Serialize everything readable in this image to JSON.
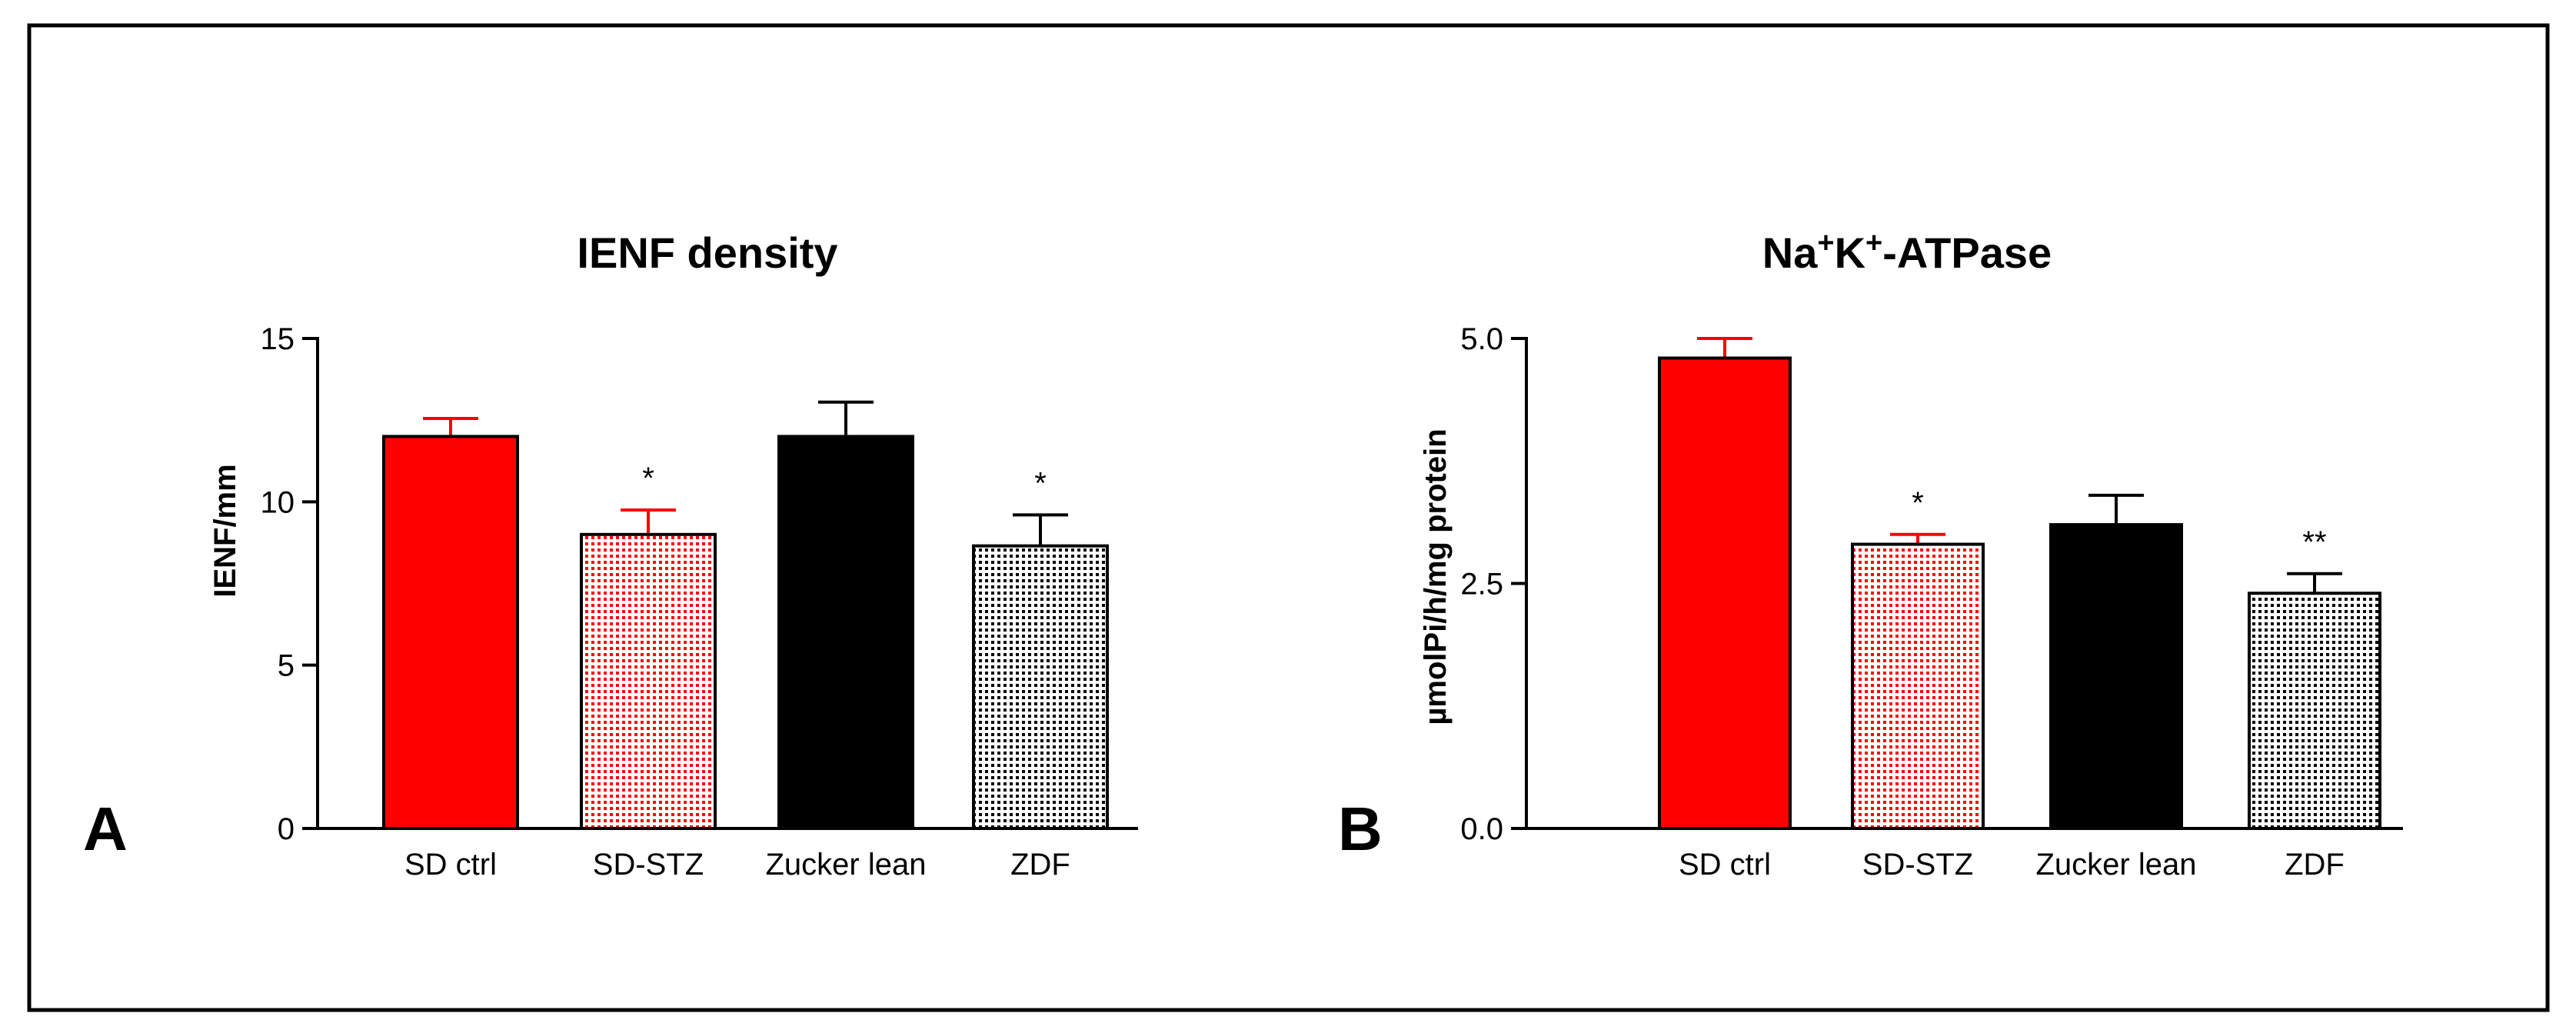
{
  "chart_data": [
    {
      "type": "bar",
      "panel_label": "A",
      "title": "IENF density",
      "xlabel": "",
      "ylabel": "IENF/mm",
      "ylim": [
        0,
        15
      ],
      "yticks": [
        0,
        5,
        10,
        15
      ],
      "yticklabels": [
        "0",
        "5",
        "10",
        "15"
      ],
      "categories": [
        "SD ctrl",
        "SD-STZ",
        "Zucker lean",
        "ZDF"
      ],
      "values": [
        12.0,
        9.0,
        12.0,
        8.65
      ],
      "errors": [
        0.55,
        0.75,
        1.05,
        0.95
      ],
      "significance": [
        "",
        "*",
        "",
        "*"
      ],
      "fills": [
        "solid-red",
        "dotted-red",
        "solid-black",
        "dotted-black"
      ],
      "colors": {
        "red": "#ff0000",
        "black": "#000000"
      }
    },
    {
      "type": "bar",
      "panel_label": "B",
      "title_parts": {
        "base1": "Na",
        "sup1": "+",
        "base2": "K",
        "sup2": "+",
        "rest": "-ATPase"
      },
      "xlabel": "",
      "ylabel": "µmolPi/h/mg protein",
      "ylim": [
        0,
        5
      ],
      "yticks": [
        0,
        2.5,
        5
      ],
      "yticklabels": [
        "0.0",
        "2.5",
        "5.0"
      ],
      "categories": [
        "SD ctrl",
        "SD-STZ",
        "Zucker lean",
        "ZDF"
      ],
      "values": [
        4.8,
        2.9,
        3.1,
        2.4
      ],
      "errors": [
        0.2,
        0.1,
        0.3,
        0.2
      ],
      "significance": [
        "",
        "*",
        "",
        "**"
      ],
      "fills": [
        "solid-red",
        "dotted-red",
        "solid-black",
        "dotted-black"
      ],
      "colors": {
        "red": "#ff0000",
        "black": "#000000"
      }
    }
  ]
}
